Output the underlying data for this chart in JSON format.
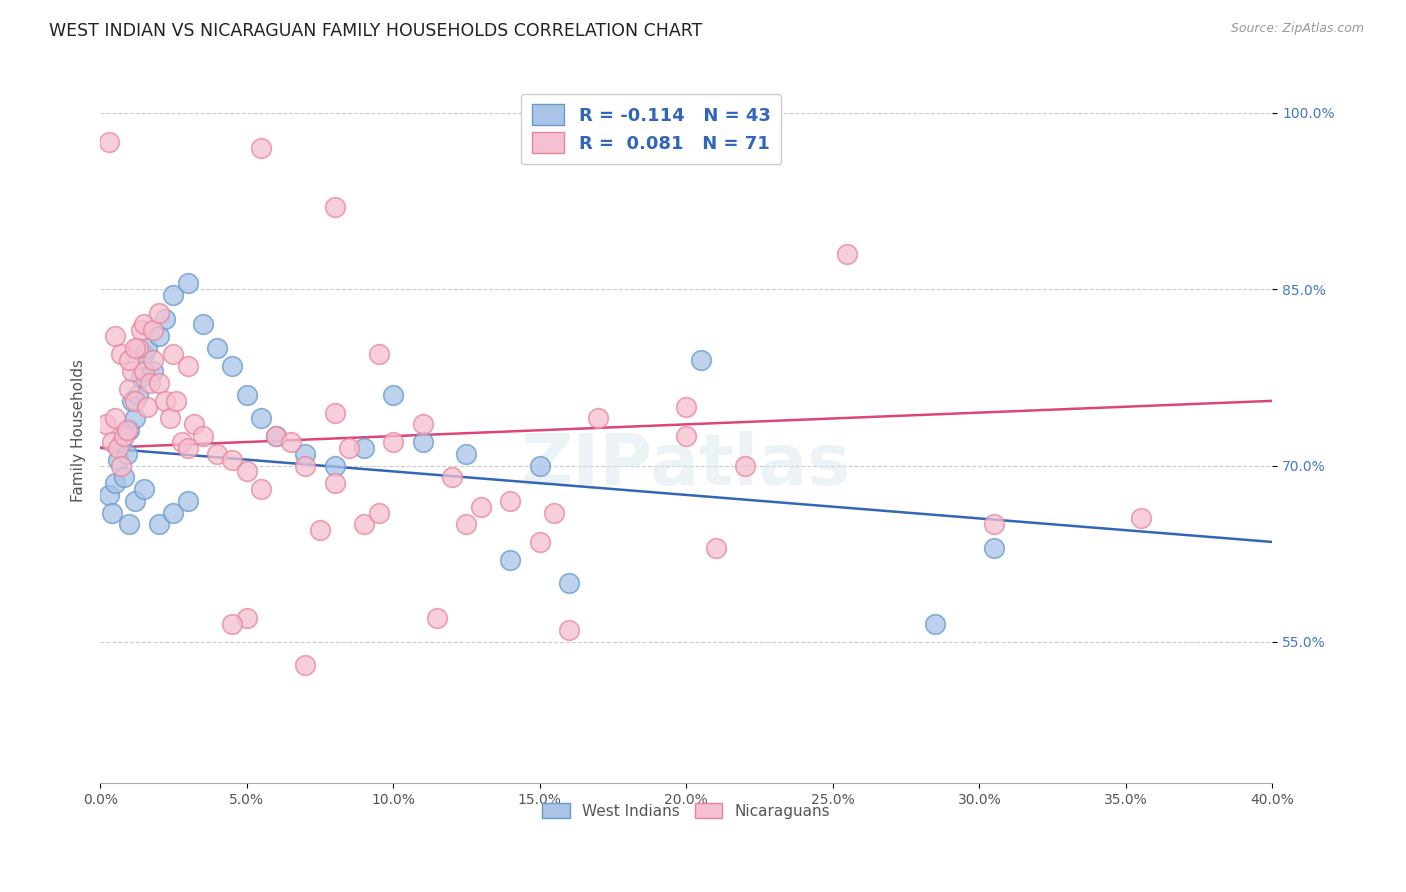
{
  "title": "WEST INDIAN VS NICARAGUAN FAMILY HOUSEHOLDS CORRELATION CHART",
  "source": "Source: ZipAtlas.com",
  "ylabel": "Family Households",
  "yticks": [
    55.0,
    70.0,
    85.0,
    100.0
  ],
  "xticks": [
    0.0,
    5.0,
    10.0,
    15.0,
    20.0,
    25.0,
    30.0,
    35.0,
    40.0
  ],
  "xmin": 0.0,
  "xmax": 40.0,
  "ymin": 43.0,
  "ymax": 103.0,
  "blue_color": "#aac4e8",
  "blue_edge_color": "#6699cc",
  "pink_color": "#f5c0d0",
  "pink_edge_color": "#e8849a",
  "blue_line_color": "#3366bb",
  "pink_line_color": "#dd4477",
  "legend_label_blue": "West Indians",
  "legend_label_pink": "Nicaraguans",
  "blue_line_x0": 0.0,
  "blue_line_y0": 71.5,
  "blue_line_x1": 40.0,
  "blue_line_y1": 63.5,
  "pink_line_x0": 0.0,
  "pink_line_y0": 71.5,
  "pink_line_x1": 40.0,
  "pink_line_y1": 75.5,
  "blue_x": [
    0.3,
    0.4,
    0.5,
    0.6,
    0.7,
    0.8,
    0.9,
    1.0,
    1.1,
    1.2,
    1.3,
    1.4,
    1.5,
    1.6,
    1.8,
    2.0,
    2.2,
    2.5,
    3.0,
    3.5,
    4.0,
    4.5,
    5.0,
    5.5,
    6.0,
    7.0,
    8.0,
    9.0,
    10.0,
    11.0,
    12.5,
    14.0,
    15.0,
    16.0,
    20.5,
    28.5,
    30.5,
    1.0,
    1.2,
    1.5,
    2.0,
    2.5,
    3.0
  ],
  "blue_y": [
    67.5,
    66.0,
    68.5,
    70.5,
    72.0,
    69.0,
    71.0,
    73.0,
    75.5,
    74.0,
    76.0,
    77.5,
    79.5,
    80.0,
    78.0,
    81.0,
    82.5,
    84.5,
    85.5,
    82.0,
    80.0,
    78.5,
    76.0,
    74.0,
    72.5,
    71.0,
    70.0,
    71.5,
    76.0,
    72.0,
    71.0,
    62.0,
    70.0,
    60.0,
    79.0,
    56.5,
    63.0,
    65.0,
    67.0,
    68.0,
    65.0,
    66.0,
    67.0
  ],
  "pink_x": [
    0.2,
    0.4,
    0.5,
    0.6,
    0.7,
    0.8,
    0.9,
    1.0,
    1.1,
    1.2,
    1.3,
    1.4,
    1.5,
    1.6,
    1.7,
    1.8,
    2.0,
    2.2,
    2.4,
    2.6,
    2.8,
    3.0,
    3.2,
    3.5,
    4.0,
    4.5,
    5.0,
    5.5,
    6.0,
    7.0,
    8.0,
    9.0,
    10.0,
    11.0,
    12.0,
    13.0,
    14.0,
    15.0,
    17.0,
    20.0,
    22.0,
    0.5,
    0.7,
    1.0,
    1.2,
    1.5,
    1.8,
    2.0,
    2.5,
    3.0,
    0.3,
    5.0,
    7.5,
    9.5,
    11.5,
    21.0,
    25.5,
    30.5,
    35.5,
    4.5,
    6.5,
    8.0,
    7.0,
    8.5,
    9.5,
    12.5,
    15.5,
    16.0,
    20.0,
    5.5,
    8.0
  ],
  "pink_y": [
    73.5,
    72.0,
    74.0,
    71.5,
    70.0,
    72.5,
    73.0,
    76.5,
    78.0,
    75.5,
    80.0,
    81.5,
    78.0,
    75.0,
    77.0,
    79.0,
    77.0,
    75.5,
    74.0,
    75.5,
    72.0,
    71.5,
    73.5,
    72.5,
    71.0,
    70.5,
    69.5,
    68.0,
    72.5,
    70.0,
    68.5,
    65.0,
    72.0,
    73.5,
    69.0,
    66.5,
    67.0,
    63.5,
    74.0,
    72.5,
    70.0,
    81.0,
    79.5,
    79.0,
    80.0,
    82.0,
    81.5,
    83.0,
    79.5,
    78.5,
    97.5,
    57.0,
    64.5,
    66.0,
    57.0,
    63.0,
    88.0,
    65.0,
    65.5,
    56.5,
    72.0,
    74.5,
    53.0,
    71.5,
    79.5,
    65.0,
    66.0,
    56.0,
    75.0,
    97.0,
    92.0
  ]
}
